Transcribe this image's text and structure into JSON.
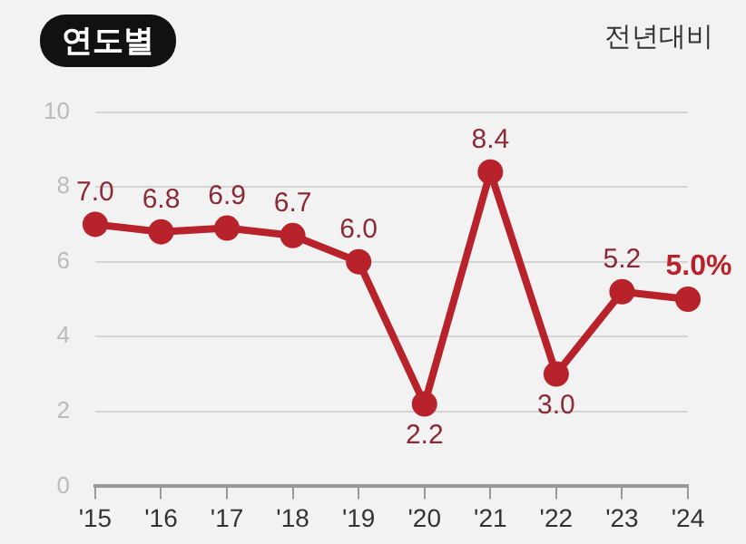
{
  "chart_data": {
    "type": "line",
    "title": "연도별",
    "subtitle": "전년대비",
    "categories": [
      "'15",
      "'16",
      "'17",
      "'18",
      "'19",
      "'20",
      "'21",
      "'22",
      "'23",
      "'24"
    ],
    "series": [
      {
        "color": "#b8222a",
        "values": [
          7.0,
          6.8,
          6.9,
          6.7,
          6.0,
          2.2,
          8.4,
          3.0,
          5.2,
          5.0
        ],
        "value_labels": [
          "7.0",
          "6.8",
          "6.9",
          "6.7",
          "6.0",
          "2.2",
          "8.4",
          "3.0",
          "5.2",
          "5.0%"
        ]
      }
    ],
    "ylim": [
      0,
      10
    ],
    "yticks": [
      0,
      2,
      4,
      6,
      8,
      10
    ],
    "grid": "y",
    "marker": "circle",
    "line_style": "solid",
    "legend": false
  }
}
